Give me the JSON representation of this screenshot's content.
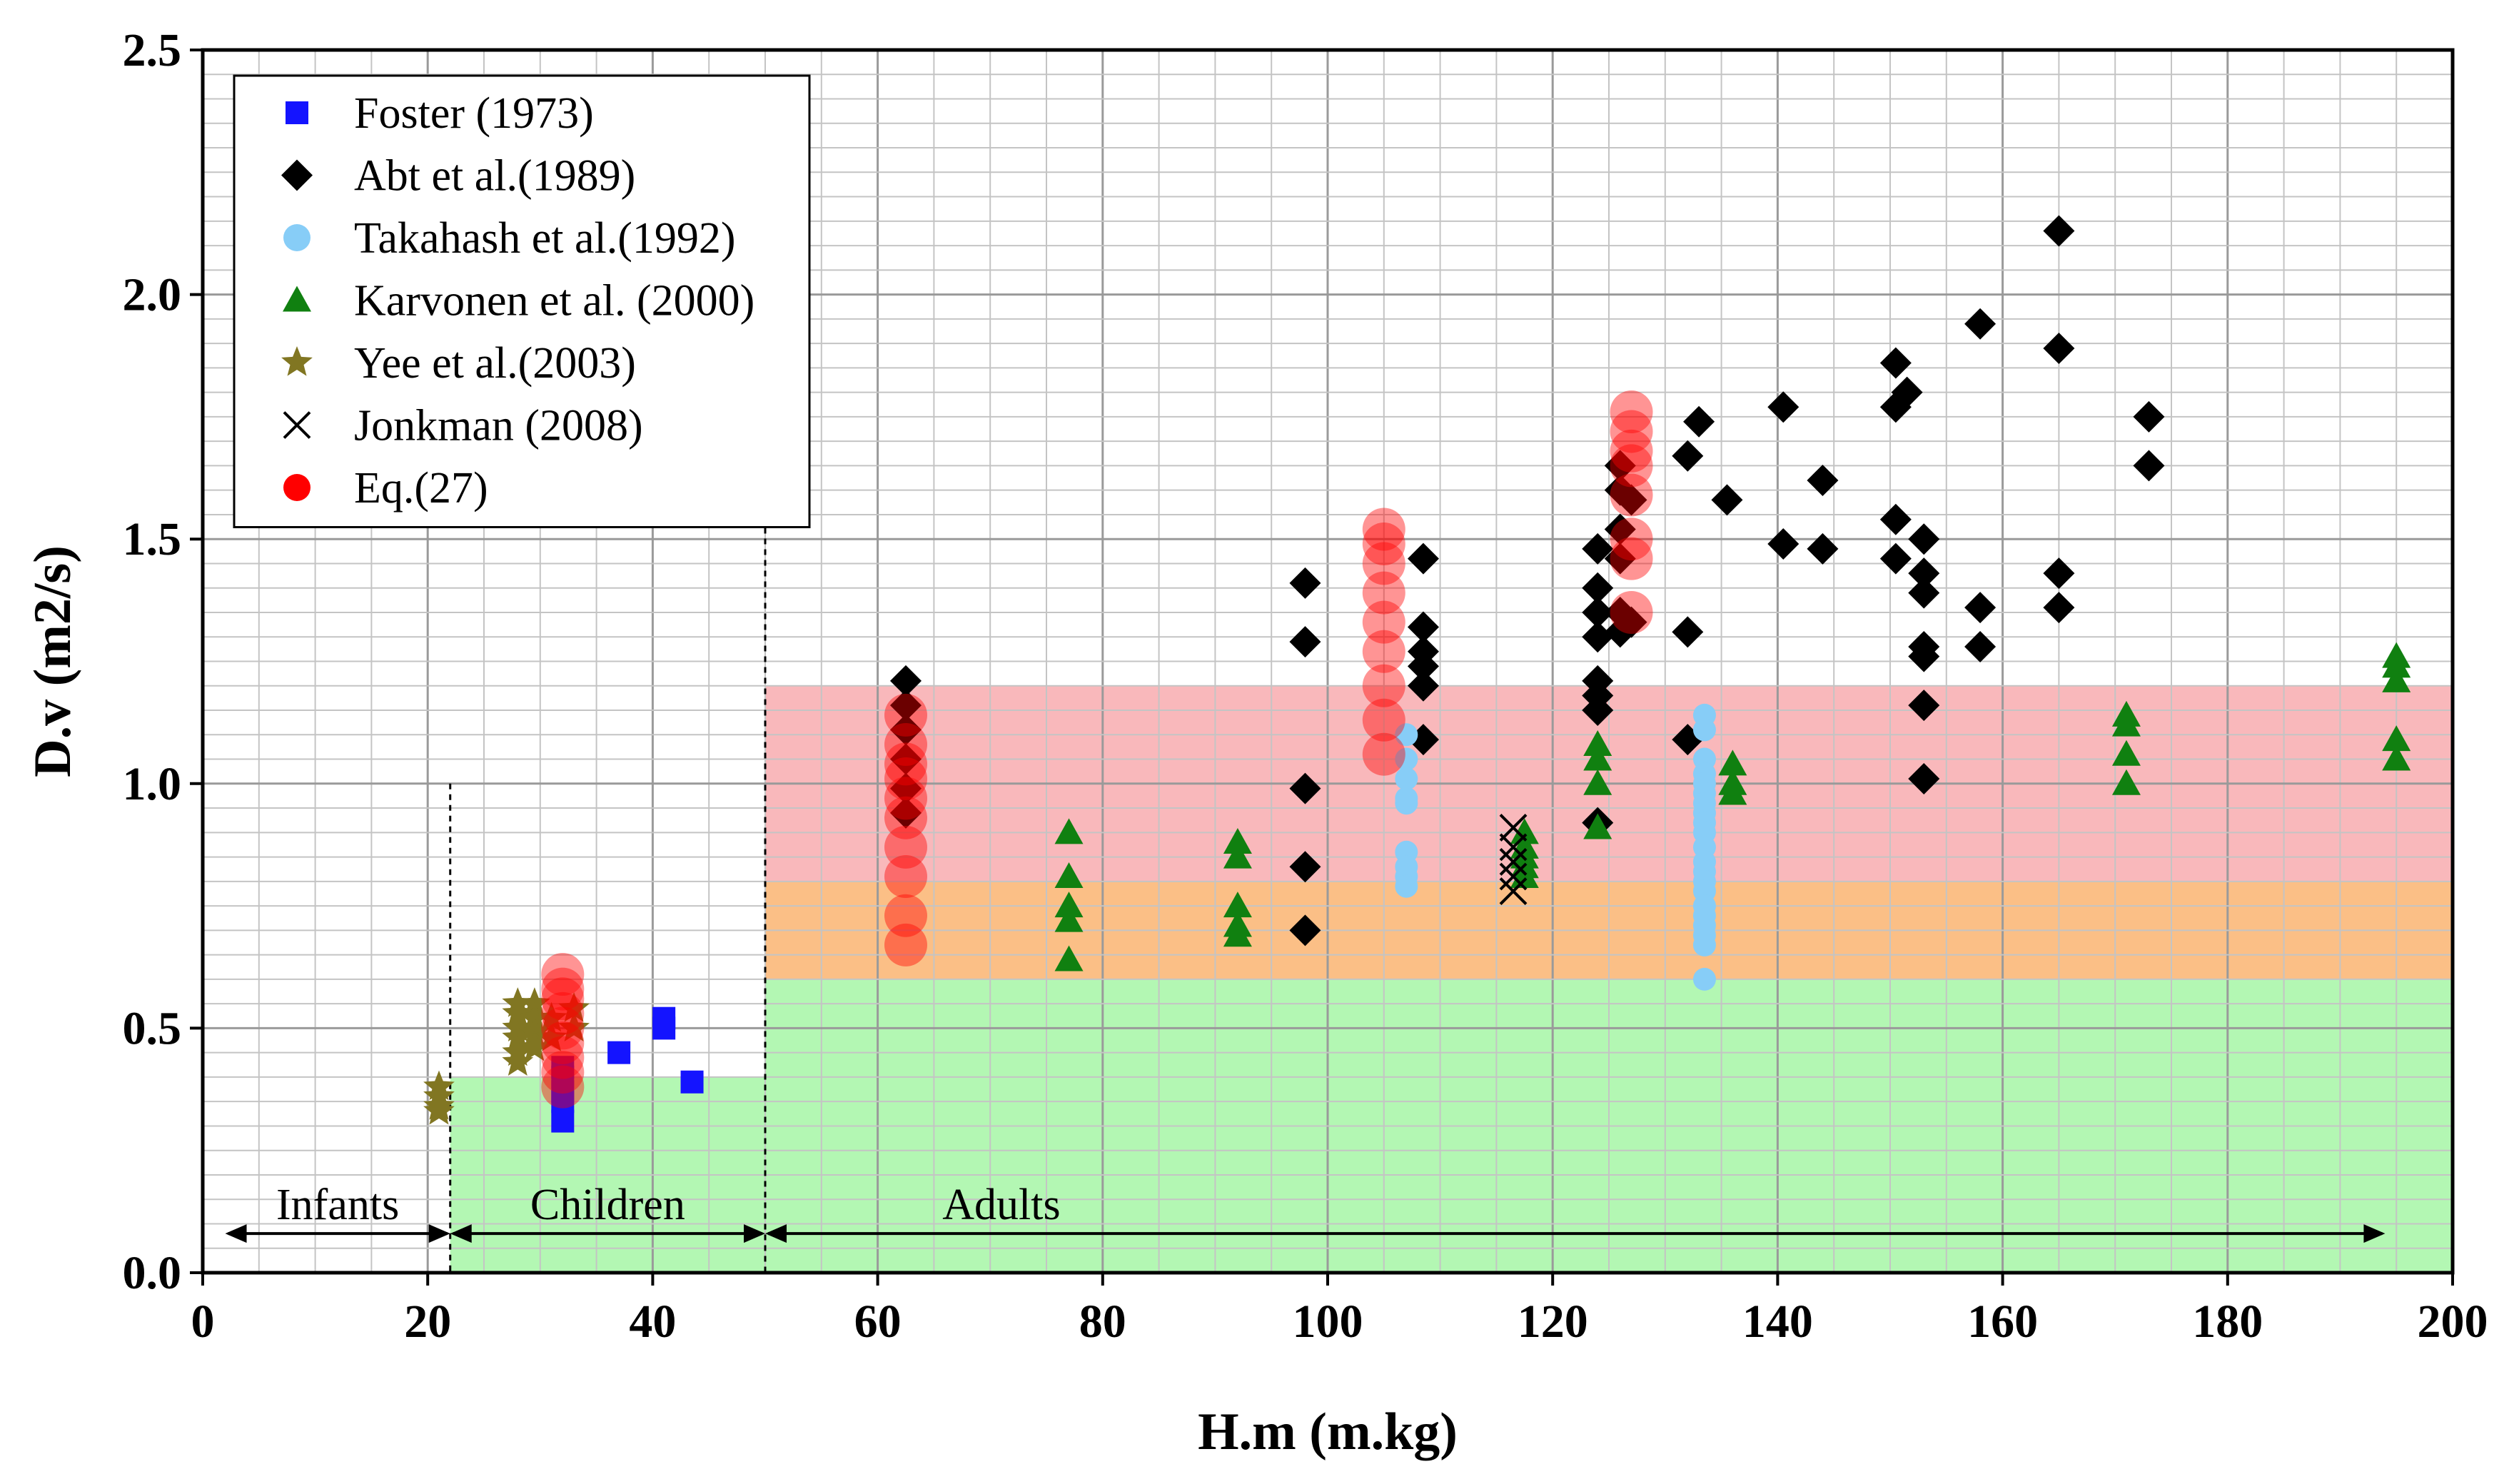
{
  "chart_data": {
    "type": "scatter",
    "xlabel": "H.m (m.kg)",
    "ylabel": "D.v (m2/s)",
    "xlim": [
      0,
      200
    ],
    "ylim": [
      0,
      2.5
    ],
    "xticks": [
      "0",
      "20",
      "40",
      "60",
      "80",
      "100",
      "120",
      "140",
      "160",
      "180",
      "200"
    ],
    "yticks": [
      "0.0",
      "0.5",
      "1.0",
      "1.5",
      "2.0",
      "2.5"
    ],
    "grid": true,
    "legend_position": "top-left",
    "zones": [
      {
        "x": [
          22,
          50
        ],
        "y": [
          0,
          0.4
        ],
        "color": "#b3f7b3"
      },
      {
        "x": [
          50,
          200
        ],
        "y": [
          0,
          0.6
        ],
        "color": "#b3f7b3"
      },
      {
        "x": [
          50,
          200
        ],
        "y": [
          0.6,
          0.8
        ],
        "color": "#fbbf86"
      },
      {
        "x": [
          50,
          200
        ],
        "y": [
          0.8,
          1.2
        ],
        "color": "#f9b8bb"
      }
    ],
    "dividers": [
      {
        "x": 22,
        "y_top": 1.0
      },
      {
        "x": 50,
        "y_top": 1.72
      }
    ],
    "age_groups": [
      {
        "label": "Infants",
        "from": 2,
        "to": 22,
        "y": 0.08
      },
      {
        "label": "Children",
        "from": 22,
        "to": 50,
        "y": 0.08
      },
      {
        "label": "Adults",
        "from": 50,
        "to": 194,
        "y": 0.08
      }
    ],
    "series": [
      {
        "name": "Foster (1973)",
        "marker": "square",
        "color": "#1414ff",
        "points": [
          [
            32,
            0.31
          ],
          [
            32,
            0.35
          ],
          [
            32,
            0.37
          ],
          [
            32,
            0.4
          ],
          [
            32,
            0.42
          ],
          [
            37,
            0.45
          ],
          [
            41,
            0.5
          ],
          [
            41,
            0.52
          ],
          [
            43.5,
            0.39
          ]
        ]
      },
      {
        "name": "Abt et al.(1989)",
        "marker": "diamond",
        "color": "#000000",
        "points": [
          [
            62.5,
            1.21
          ],
          [
            62.5,
            1.16
          ],
          [
            62.5,
            1.11
          ],
          [
            62.5,
            1.05
          ],
          [
            62.5,
            0.99
          ],
          [
            62.5,
            0.94
          ],
          [
            98,
            1.41
          ],
          [
            98,
            1.29
          ],
          [
            98,
            0.99
          ],
          [
            98,
            0.83
          ],
          [
            98,
            0.7
          ],
          [
            108.5,
            1.46
          ],
          [
            108.5,
            1.32
          ],
          [
            108.5,
            1.27
          ],
          [
            108.5,
            1.24
          ],
          [
            108.5,
            1.2
          ],
          [
            108.5,
            1.09
          ],
          [
            124,
            1.48
          ],
          [
            124,
            1.4
          ],
          [
            124,
            1.35
          ],
          [
            124,
            1.3
          ],
          [
            124,
            1.21
          ],
          [
            124,
            1.18
          ],
          [
            124,
            1.15
          ],
          [
            124,
            0.92
          ],
          [
            126,
            1.65
          ],
          [
            126,
            1.6
          ],
          [
            126,
            1.52
          ],
          [
            126,
            1.46
          ],
          [
            126,
            1.35
          ],
          [
            126,
            1.31
          ],
          [
            127,
            1.58
          ],
          [
            127,
            1.33
          ],
          [
            132,
            1.67
          ],
          [
            132,
            1.31
          ],
          [
            132,
            1.09
          ],
          [
            133,
            1.74
          ],
          [
            135.5,
            1.58
          ],
          [
            140.5,
            1.77
          ],
          [
            140.5,
            1.49
          ],
          [
            144,
            1.62
          ],
          [
            144,
            1.48
          ],
          [
            150.5,
            1.86
          ],
          [
            150.5,
            1.77
          ],
          [
            150.5,
            1.54
          ],
          [
            150.5,
            1.46
          ],
          [
            151.5,
            1.8
          ],
          [
            153,
            1.5
          ],
          [
            153,
            1.43
          ],
          [
            153,
            1.39
          ],
          [
            153,
            1.28
          ],
          [
            153,
            1.26
          ],
          [
            153,
            1.16
          ],
          [
            153,
            1.01
          ],
          [
            158,
            1.94
          ],
          [
            158,
            1.36
          ],
          [
            158,
            1.28
          ],
          [
            165,
            2.13
          ],
          [
            165,
            1.89
          ],
          [
            165,
            1.43
          ],
          [
            165,
            1.36
          ],
          [
            173,
            1.75
          ],
          [
            173,
            1.65
          ]
        ]
      },
      {
        "name": "Takahash et al.(1992)",
        "marker": "circle",
        "color": "#87cdf7",
        "points": [
          [
            107,
            1.1
          ],
          [
            107,
            1.05
          ],
          [
            107,
            1.01
          ],
          [
            107,
            0.97
          ],
          [
            107,
            0.96
          ],
          [
            107,
            0.86
          ],
          [
            107,
            0.83
          ],
          [
            107,
            0.81
          ],
          [
            107,
            0.79
          ],
          [
            133.5,
            1.14
          ],
          [
            133.5,
            1.11
          ],
          [
            133.5,
            1.05
          ],
          [
            133.5,
            1.02
          ],
          [
            133.5,
            1.0
          ],
          [
            133.5,
            0.98
          ],
          [
            133.5,
            0.96
          ],
          [
            133.5,
            0.94
          ],
          [
            133.5,
            0.92
          ],
          [
            133.5,
            0.9
          ],
          [
            133.5,
            0.87
          ],
          [
            133.5,
            0.84
          ],
          [
            133.5,
            0.82
          ],
          [
            133.5,
            0.8
          ],
          [
            133.5,
            0.78
          ],
          [
            133.5,
            0.75
          ],
          [
            133.5,
            0.73
          ],
          [
            133.5,
            0.71
          ],
          [
            133.5,
            0.69
          ],
          [
            133.5,
            0.67
          ],
          [
            133.5,
            0.6
          ]
        ]
      },
      {
        "name": "Karvonen et al. (2000)",
        "marker": "triangle",
        "color": "#108010",
        "points": [
          [
            77,
            0.9
          ],
          [
            77,
            0.81
          ],
          [
            77,
            0.75
          ],
          [
            77,
            0.72
          ],
          [
            77,
            0.64
          ],
          [
            92,
            0.88
          ],
          [
            92,
            0.85
          ],
          [
            92,
            0.75
          ],
          [
            92,
            0.71
          ],
          [
            92,
            0.69
          ],
          [
            117.5,
            0.9
          ],
          [
            117.5,
            0.87
          ],
          [
            117.5,
            0.85
          ],
          [
            117.5,
            0.83
          ],
          [
            117.5,
            0.81
          ],
          [
            124,
            1.08
          ],
          [
            124,
            1.05
          ],
          [
            124,
            1.0
          ],
          [
            124,
            0.91
          ],
          [
            136,
            1.04
          ],
          [
            136,
            1.0
          ],
          [
            136,
            0.98
          ],
          [
            171,
            1.14
          ],
          [
            171,
            1.12
          ],
          [
            171,
            1.06
          ],
          [
            171,
            1.0
          ],
          [
            195,
            1.26
          ],
          [
            195,
            1.24
          ],
          [
            195,
            1.21
          ],
          [
            195,
            1.09
          ],
          [
            195,
            1.05
          ]
        ]
      },
      {
        "name": "Yee et al.(2003)",
        "marker": "star",
        "color": "#817622",
        "points": [
          [
            21,
            0.38
          ],
          [
            21,
            0.36
          ],
          [
            21,
            0.34
          ],
          [
            21,
            0.33
          ],
          [
            28,
            0.55
          ],
          [
            28,
            0.53
          ],
          [
            28,
            0.5
          ],
          [
            28,
            0.48
          ],
          [
            28,
            0.45
          ],
          [
            28,
            0.43
          ],
          [
            29.5,
            0.55
          ],
          [
            29.5,
            0.52
          ],
          [
            29.5,
            0.49
          ],
          [
            29.5,
            0.46
          ],
          [
            31,
            0.52
          ],
          [
            31,
            0.48
          ],
          [
            33,
            0.54
          ],
          [
            33,
            0.5
          ]
        ]
      },
      {
        "name": "Jonkman (2008)",
        "marker": "x",
        "color": "#000000",
        "points": [
          [
            116.5,
            0.91
          ],
          [
            116.5,
            0.87
          ],
          [
            116.5,
            0.84
          ],
          [
            116.5,
            0.81
          ],
          [
            116.5,
            0.78
          ]
        ]
      },
      {
        "name": "Eq.(27)",
        "marker": "circle",
        "color": "#ff0000",
        "points": [
          [
            32,
            0.38
          ],
          [
            32,
            0.41
          ],
          [
            32,
            0.44
          ],
          [
            32,
            0.47
          ],
          [
            32,
            0.5
          ],
          [
            32,
            0.53
          ],
          [
            32,
            0.56
          ],
          [
            32,
            0.58
          ],
          [
            32,
            0.61
          ],
          [
            62.5,
            0.67
          ],
          [
            62.5,
            0.73
          ],
          [
            62.5,
            0.81
          ],
          [
            62.5,
            0.87
          ],
          [
            62.5,
            0.93
          ],
          [
            62.5,
            0.97
          ],
          [
            62.5,
            1.01
          ],
          [
            62.5,
            1.04
          ],
          [
            62.5,
            1.08
          ],
          [
            62.5,
            1.14
          ],
          [
            105,
            1.06
          ],
          [
            105,
            1.13
          ],
          [
            105,
            1.2
          ],
          [
            105,
            1.27
          ],
          [
            105,
            1.33
          ],
          [
            105,
            1.39
          ],
          [
            105,
            1.45
          ],
          [
            105,
            1.49
          ],
          [
            105,
            1.52
          ],
          [
            127,
            1.35
          ],
          [
            127,
            1.46
          ],
          [
            127,
            1.5
          ],
          [
            127,
            1.59
          ],
          [
            127,
            1.65
          ],
          [
            127,
            1.68
          ],
          [
            127,
            1.72
          ],
          [
            127,
            1.76
          ]
        ]
      }
    ]
  }
}
